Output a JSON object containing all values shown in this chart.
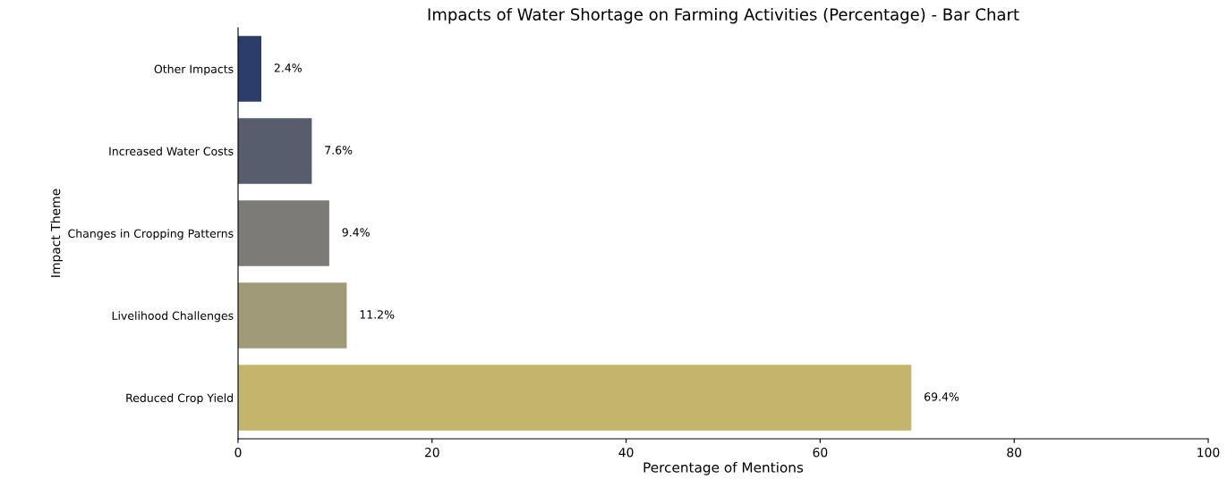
{
  "chart_data": {
    "type": "bar",
    "orientation": "horizontal",
    "title": "Impacts of Water Shortage on Farming Activities (Percentage) - Bar Chart",
    "xlabel": "Percentage of Mentions",
    "ylabel": "Impact Theme",
    "categories": [
      "Other Impacts",
      "Increased Water Costs",
      "Changes in Cropping Patterns",
      "Livelihood Challenges",
      "Reduced Crop Yield"
    ],
    "values": [
      2.4,
      7.6,
      9.4,
      11.2,
      69.4
    ],
    "colors": [
      "#2c3d6b",
      "#575d6d",
      "#7d7b78",
      "#a19a78",
      "#c5b46c"
    ],
    "value_labels": [
      "2.4%",
      "7.6%",
      "9.4%",
      "11.2%",
      "69.4%"
    ],
    "xlim": [
      0,
      100
    ],
    "xticks": [
      0,
      20,
      40,
      60,
      80,
      100
    ],
    "grid": false
  }
}
